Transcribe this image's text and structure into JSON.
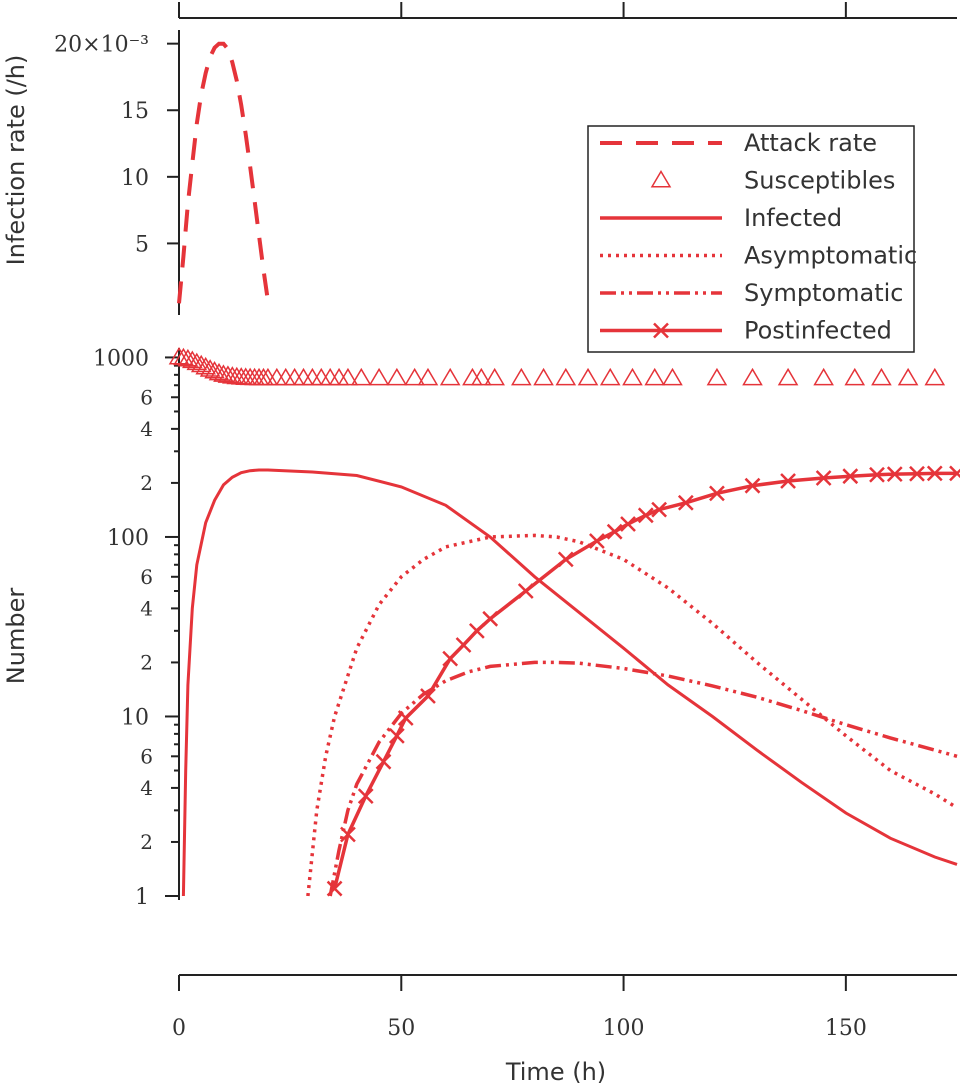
{
  "chart_data": [
    {
      "type": "line",
      "panel": "top",
      "ylabel": "Infection rate (/h)",
      "y_tick_labels": [
        "5",
        "10",
        "15",
        "20×10⁻³"
      ],
      "y_ticks": [
        0.005,
        0.01,
        0.015,
        0.02
      ],
      "ylim": [
        0.0,
        0.0205
      ],
      "xlim": [
        0,
        175
      ],
      "x_ticks": [
        0,
        50,
        100,
        150
      ],
      "series": [
        {
          "name": "Attack rate",
          "style": "dashed",
          "color": "#e5343a",
          "x": [
            0,
            1,
            2,
            3,
            4,
            5,
            6,
            7,
            8,
            9,
            10,
            11,
            12,
            13,
            14,
            15,
            16,
            17,
            18,
            19,
            20
          ],
          "y": [
            0.0005,
            0.004,
            0.008,
            0.011,
            0.014,
            0.0162,
            0.0178,
            0.019,
            0.0197,
            0.02,
            0.02,
            0.0196,
            0.0186,
            0.0172,
            0.0154,
            0.0132,
            0.0108,
            0.0082,
            0.0056,
            0.003,
            0.0007
          ]
        }
      ]
    },
    {
      "type": "line",
      "panel": "bottom",
      "xlabel": "Time (h)",
      "ylabel": "Number",
      "yscale": "log",
      "ylim": [
        1,
        1100
      ],
      "xlim": [
        0,
        175
      ],
      "x_ticks": [
        0,
        50,
        100,
        150
      ],
      "x_tick_labels": [
        "0",
        "50",
        "100",
        "150"
      ],
      "y_major_ticks": [
        1,
        10,
        100,
        1000
      ],
      "y_major_labels": [
        "1",
        "10",
        "100",
        "1000"
      ],
      "y_minor_ticks": [
        2,
        4,
        6,
        20,
        40,
        60,
        200,
        400,
        600
      ],
      "y_minor_labels": [
        "2",
        "4",
        "6",
        "2",
        "4",
        "6",
        "2",
        "4",
        "6"
      ],
      "legend_position": "top-right",
      "series": [
        {
          "name": "Susceptibles",
          "style": "triangle-markers",
          "color": "#e5343a",
          "x": [
            0,
            1,
            2,
            3,
            4,
            5,
            6,
            7,
            8,
            9,
            10,
            11,
            12,
            13,
            14,
            15,
            16,
            17,
            18,
            19,
            20,
            22,
            24,
            26,
            28,
            30,
            32,
            34,
            36,
            38,
            41,
            45,
            49,
            53,
            56,
            61,
            66,
            68,
            71,
            77,
            82,
            87,
            92,
            97,
            102,
            107,
            111,
            121,
            129,
            137,
            145,
            152,
            158,
            164,
            170
          ],
          "y": [
            1000,
            990,
            975,
            955,
            930,
            905,
            880,
            855,
            835,
            815,
            800,
            790,
            782,
            776,
            772,
            769,
            767,
            766,
            765,
            765,
            765,
            765,
            765,
            765,
            765,
            765,
            765,
            765,
            765,
            765,
            765,
            765,
            765,
            765,
            765,
            765,
            765,
            765,
            765,
            765,
            765,
            765,
            765,
            765,
            765,
            765,
            765,
            765,
            765,
            765,
            765,
            765,
            765,
            765,
            765
          ]
        },
        {
          "name": "Infected",
          "style": "solid",
          "color": "#e5343a",
          "x": [
            1,
            1.5,
            2,
            3,
            4,
            6,
            8,
            10,
            12,
            14,
            16,
            18,
            20,
            25,
            30,
            40,
            50,
            60,
            70,
            80,
            90,
            100,
            110,
            120,
            130,
            140,
            150,
            160,
            170,
            175
          ],
          "y": [
            1,
            5,
            15,
            40,
            70,
            120,
            160,
            195,
            215,
            228,
            234,
            236,
            236,
            233,
            230,
            220,
            190,
            150,
            100,
            60,
            38,
            24,
            15,
            10,
            6.5,
            4.3,
            2.9,
            2.1,
            1.65,
            1.5
          ]
        },
        {
          "name": "Asymptomatic",
          "style": "dotted",
          "color": "#e5343a",
          "x": [
            29,
            31,
            33,
            35,
            40,
            45,
            50,
            55,
            60,
            70,
            80,
            85,
            90,
            100,
            110,
            120,
            130,
            140,
            150,
            160,
            170,
            175
          ],
          "y": [
            1,
            3,
            6,
            10,
            24,
            42,
            60,
            75,
            88,
            100,
            102,
            100,
            94,
            75,
            52,
            33,
            20,
            12.5,
            7.8,
            5,
            3.7,
            3.1
          ]
        },
        {
          "name": "Symptomatic",
          "style": "dash-dot-dot",
          "color": "#e5343a",
          "x": [
            34,
            36,
            38,
            40,
            45,
            50,
            55,
            60,
            65,
            70,
            80,
            85,
            90,
            100,
            110,
            120,
            130,
            140,
            150,
            160,
            170,
            175
          ],
          "y": [
            1,
            1.8,
            3,
            4.2,
            7.2,
            10.4,
            13.3,
            15.8,
            17.7,
            19,
            20,
            20,
            19.8,
            18.5,
            16.8,
            14.8,
            12.8,
            10.8,
            9,
            7.6,
            6.5,
            6
          ]
        },
        {
          "name": "Postinfected",
          "style": "solid-x-markers",
          "color": "#e5343a",
          "x": [
            35,
            38,
            42,
            46,
            49,
            51,
            56,
            61,
            64,
            67,
            70,
            78,
            87,
            94,
            98,
            101,
            105,
            108,
            114,
            121,
            129,
            137,
            145,
            151,
            157,
            161,
            166,
            170,
            175
          ],
          "y": [
            1.1,
            2.2,
            3.6,
            5.6,
            7.8,
            9.8,
            13,
            21,
            25,
            30,
            35,
            50,
            75,
            95,
            107,
            118,
            132,
            142,
            155,
            175,
            193,
            205,
            213,
            218,
            222,
            224,
            225,
            226,
            226
          ]
        }
      ]
    }
  ]
}
